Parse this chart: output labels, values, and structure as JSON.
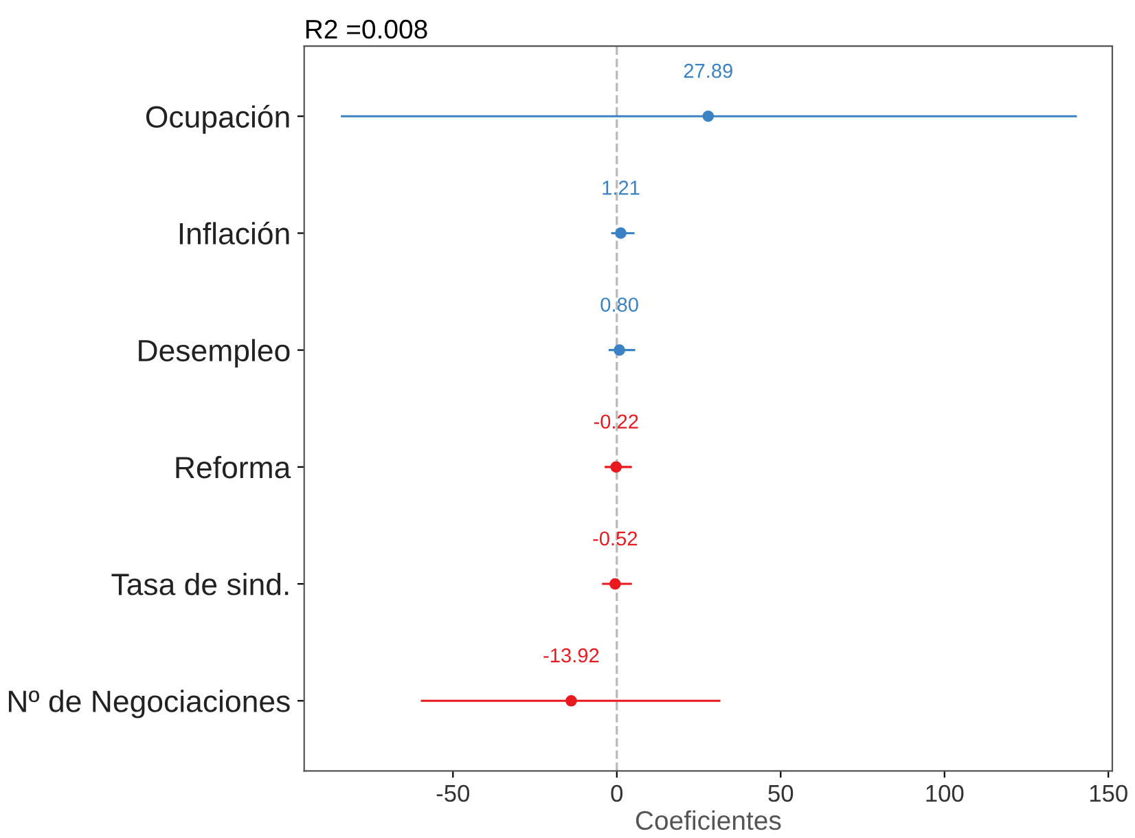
{
  "chart_data": {
    "type": "scatter",
    "orientation": "horizontal",
    "title": "R2 =0.008",
    "xlabel": "Coeficientes",
    "categories": [
      "Ocupación",
      "Inflación",
      "Desempleo",
      "Reforma",
      "Tasa de sind.",
      "Nº de Negociaciones"
    ],
    "values": [
      27.89,
      1.21,
      0.8,
      -0.22,
      -0.52,
      -13.92
    ],
    "errors": [
      [
        -84.2,
        140.4
      ],
      [
        -1.7,
        5.4
      ],
      [
        -2.5,
        5.6
      ],
      [
        -3.7,
        4.6
      ],
      [
        -4.5,
        4.6
      ],
      [
        -59.8,
        31.6
      ]
    ],
    "value_labels": [
      "27.89",
      "1.21",
      "0.80",
      "-0.22",
      "-0.52",
      "-13.92"
    ],
    "colors": [
      "#3a82c4",
      "#3a82c4",
      "#3a82c4",
      "#e8191f",
      "#e8191f",
      "#e8191f"
    ],
    "xlim": [
      -95.4,
      151.2
    ],
    "xticks": [
      -50,
      0,
      50,
      100,
      150
    ],
    "ref_lines": [
      {
        "axis": "x",
        "value": 0,
        "color": "#bbbbbb",
        "line_style": "dashed"
      }
    ],
    "marker": "circle",
    "grid": false
  }
}
